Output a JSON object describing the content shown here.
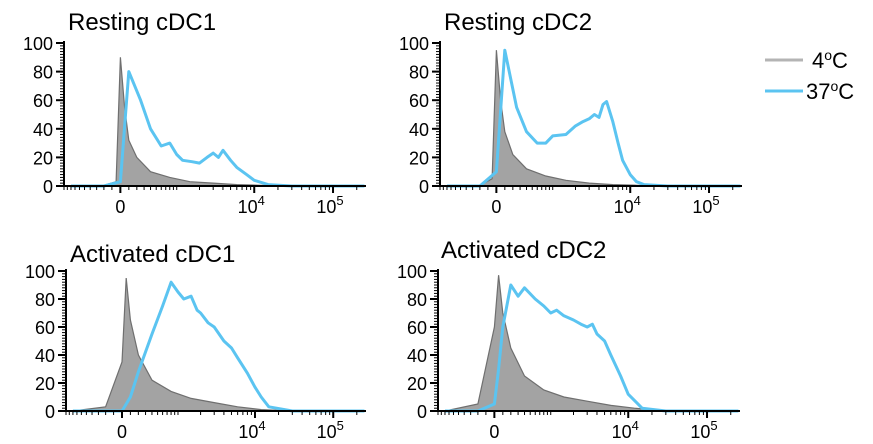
{
  "legend": [
    {
      "label": "4°C",
      "base": "4",
      "unit": "°C",
      "color": "#b4b4b4"
    },
    {
      "label": "37°C",
      "base": "37",
      "unit": "°C",
      "color": "#5bc4f1"
    }
  ],
  "fill_color": "#a3a3a3",
  "chart_data": [
    {
      "type": "area",
      "title": "Resting cDC1",
      "xlabel": "",
      "ylabel": "",
      "xscale": "biexponential",
      "xticklabels": [
        "0",
        "10^4",
        "10^5"
      ],
      "yticks": [
        0,
        20,
        40,
        60,
        80,
        100
      ],
      "ylim": [
        0,
        100
      ],
      "series": [
        {
          "name": "4°C",
          "x": [
            -800,
            -200,
            -50,
            0,
            50,
            100,
            200,
            400,
            800,
            1500,
            3000,
            6000,
            12000,
            30000,
            100000,
            250000
          ],
          "y": [
            0,
            0.5,
            3,
            90,
            55,
            32,
            20,
            10,
            6,
            3,
            2,
            1,
            0.5,
            0,
            0,
            0
          ]
        },
        {
          "name": "37°C",
          "x": [
            -800,
            -200,
            0,
            100,
            250,
            400,
            600,
            800,
            1000,
            1200,
            1600,
            2000,
            2500,
            3000,
            3500,
            4000,
            5000,
            6000,
            8000,
            10000,
            15000,
            30000,
            100000,
            250000
          ],
          "y": [
            0,
            0,
            3,
            80,
            60,
            40,
            28,
            30,
            22,
            18,
            17,
            16,
            20,
            23,
            20,
            25,
            18,
            13,
            8,
            4,
            1,
            0,
            0,
            0
          ]
        }
      ]
    },
    {
      "type": "area",
      "title": "Resting cDC2",
      "xlabel": "",
      "ylabel": "",
      "xscale": "biexponential",
      "xticklabels": [
        "0",
        "10^4",
        "10^5"
      ],
      "yticks": [
        0,
        20,
        40,
        60,
        80,
        100
      ],
      "ylim": [
        0,
        100
      ],
      "series": [
        {
          "name": "4°C",
          "x": [
            -800,
            -200,
            -50,
            0,
            50,
            100,
            200,
            400,
            800,
            1500,
            3000,
            6000,
            12000,
            30000,
            100000,
            250000
          ],
          "y": [
            0,
            0.5,
            5,
            95,
            60,
            38,
            22,
            12,
            7,
            4,
            2,
            1,
            0.5,
            0,
            0,
            0
          ]
        },
        {
          "name": "37°C",
          "x": [
            -800,
            -200,
            0,
            100,
            250,
            400,
            600,
            800,
            1000,
            1500,
            2000,
            2500,
            3000,
            3500,
            4000,
            4500,
            5000,
            6000,
            7000,
            8000,
            10000,
            12000,
            15000,
            30000,
            100000,
            250000
          ],
          "y": [
            0,
            0,
            10,
            95,
            55,
            38,
            30,
            30,
            35,
            36,
            42,
            45,
            47,
            50,
            48,
            57,
            59,
            45,
            30,
            18,
            8,
            3,
            1,
            0,
            0,
            0
          ]
        }
      ]
    },
    {
      "type": "area",
      "title": "Activated cDC1",
      "xlabel": "",
      "ylabel": "",
      "xscale": "biexponential",
      "xticklabels": [
        "0",
        "10^4",
        "10^5"
      ],
      "yticks": [
        0,
        20,
        40,
        60,
        80,
        100
      ],
      "ylim": [
        0,
        100
      ],
      "series": [
        {
          "name": "4°C",
          "x": [
            -800,
            -200,
            0,
            50,
            100,
            200,
            400,
            800,
            1500,
            3000,
            6000,
            12000,
            30000,
            100000,
            250000
          ],
          "y": [
            0,
            3,
            35,
            95,
            65,
            40,
            22,
            14,
            9,
            6,
            3,
            1,
            0,
            0,
            0
          ]
        },
        {
          "name": "37°C",
          "x": [
            -800,
            -200,
            0,
            100,
            200,
            400,
            600,
            800,
            1000,
            1200,
            1500,
            1800,
            2000,
            2500,
            3000,
            4000,
            5000,
            6000,
            8000,
            10000,
            12000,
            15000,
            30000,
            100000,
            250000
          ],
          "y": [
            0,
            0,
            0,
            10,
            28,
            55,
            75,
            92,
            85,
            80,
            82,
            72,
            70,
            63,
            60,
            50,
            45,
            38,
            27,
            17,
            10,
            3,
            0,
            0,
            0
          ]
        }
      ]
    },
    {
      "type": "area",
      "title": "Activated cDC2",
      "xlabel": "",
      "ylabel": "",
      "xscale": "biexponential",
      "xticklabels": [
        "0",
        "10^4",
        "10^5"
      ],
      "yticks": [
        0,
        20,
        40,
        60,
        80,
        100
      ],
      "ylim": [
        0,
        100
      ],
      "series": [
        {
          "name": "4°C",
          "x": [
            -800,
            -200,
            0,
            50,
            100,
            200,
            400,
            800,
            1500,
            3000,
            6000,
            12000,
            30000,
            100000,
            250000
          ],
          "y": [
            0,
            5,
            60,
            97,
            70,
            45,
            25,
            15,
            10,
            7,
            4,
            2,
            0,
            0,
            0
          ]
        },
        {
          "name": "37°C",
          "x": [
            -800,
            -200,
            0,
            50,
            100,
            200,
            300,
            400,
            600,
            800,
            1000,
            1200,
            1500,
            2000,
            2500,
            3000,
            3500,
            4000,
            5000,
            6000,
            8000,
            10000,
            15000,
            30000,
            100000,
            250000
          ],
          "y": [
            0,
            0,
            5,
            30,
            60,
            90,
            82,
            88,
            80,
            75,
            70,
            72,
            68,
            65,
            62,
            60,
            62,
            55,
            50,
            40,
            25,
            12,
            2,
            0,
            0,
            0
          ]
        }
      ]
    }
  ]
}
